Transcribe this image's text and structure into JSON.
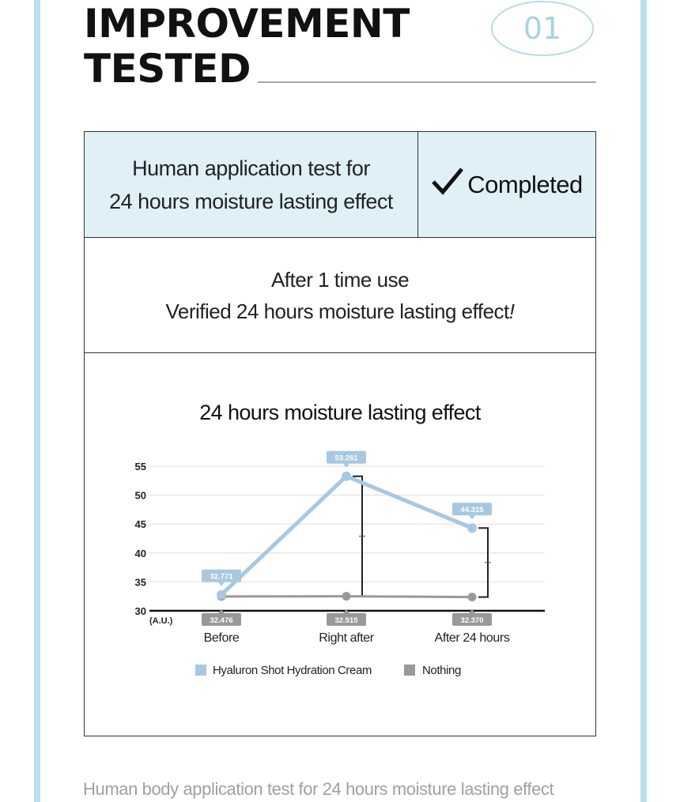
{
  "header": {
    "title_line1": "IMPROVEMENT",
    "title_line2": "TESTED",
    "badge": "01"
  },
  "test_row": {
    "line1": "Human application test for",
    "line2": "24 hours moisture lasting effect",
    "status": "Completed"
  },
  "result": {
    "line1": "After 1 time use",
    "line2": "Verified 24 hours moisture lasting effect",
    "mark": "!"
  },
  "chart_data": {
    "type": "line",
    "title": "24 hours moisture lasting effect",
    "unit_label": "(A.U.)",
    "categories": [
      "Before",
      "Right after",
      "After 24 hours"
    ],
    "yticks": [
      30,
      35,
      40,
      45,
      50,
      55
    ],
    "ylim": [
      30,
      55
    ],
    "grid": true,
    "legend": "bottom",
    "series": [
      {
        "name": "Hyaluron Shot Hydration Cream",
        "values": [
          32.771,
          53.261,
          44.315
        ],
        "labels": [
          "32.771",
          "53.261",
          "44.315"
        ],
        "color": "#a7c8e0"
      },
      {
        "name": "Nothing",
        "values": [
          32.476,
          32.515,
          32.37
        ],
        "labels": [
          "32.476",
          "32.515",
          "32.370"
        ],
        "color": "#999999"
      }
    ]
  },
  "footer": {
    "caption": "Human body application test for 24 hours moisture lasting effect"
  },
  "colors": {
    "accent": "#b8e0ec",
    "header_fill": "#dff1f7",
    "cream_series": "#a7c8e0",
    "nothing_series": "#999999"
  }
}
